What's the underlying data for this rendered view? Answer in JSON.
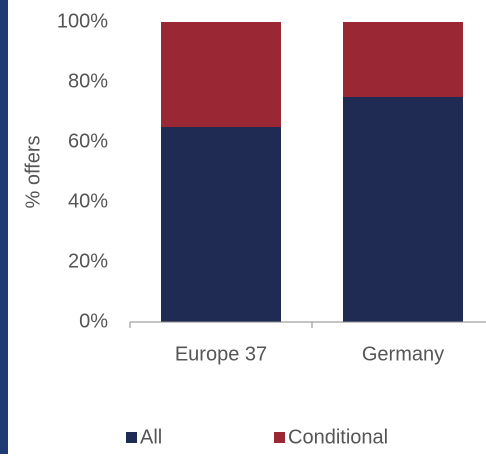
{
  "chart_data": {
    "type": "bar",
    "stacked": true,
    "categories": [
      "Europe 37",
      "Germany"
    ],
    "series": [
      {
        "name": "All",
        "color": "#1f2b52",
        "values": [
          65,
          75
        ]
      },
      {
        "name": "Conditional",
        "color": "#9a2834",
        "values": [
          35,
          25
        ]
      }
    ],
    "ylabel": "% offers",
    "ylim": [
      0,
      100
    ],
    "yticks": [
      {
        "value": 0,
        "label": "0%"
      },
      {
        "value": 20,
        "label": "20%"
      },
      {
        "value": 40,
        "label": "40%"
      },
      {
        "value": 60,
        "label": "60%"
      },
      {
        "value": 80,
        "label": "80%"
      },
      {
        "value": 100,
        "label": "100%"
      }
    ],
    "grid": false,
    "legend": "bottom"
  }
}
